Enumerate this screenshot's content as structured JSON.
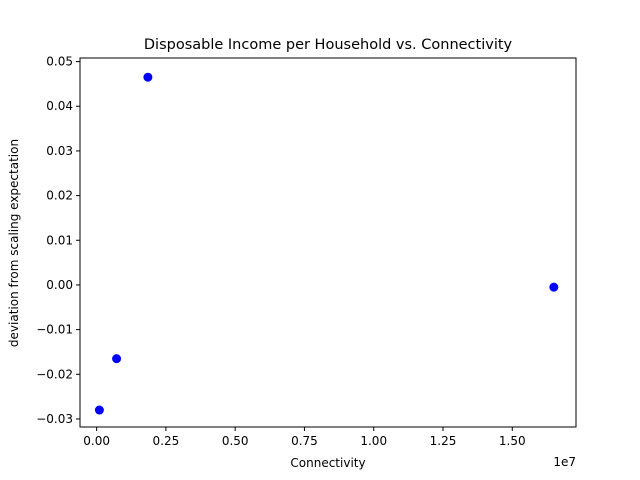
{
  "chart_data": {
    "type": "scatter",
    "title": "Disposable Income per Household vs. Connectivity",
    "xlabel": "Connectivity",
    "ylabel": "deviation from scaling expectation",
    "x_offset_text": "1e7",
    "xlim": [
      -600000,
      17300000
    ],
    "ylim": [
      -0.0318,
      0.0508
    ],
    "x_ticks": [
      0,
      2500000,
      5000000,
      7500000,
      10000000,
      12500000,
      15000000
    ],
    "x_tick_labels": [
      "0.00",
      "0.25",
      "0.50",
      "0.75",
      "1.00",
      "1.25",
      "1.50"
    ],
    "y_ticks": [
      -0.03,
      -0.02,
      -0.01,
      0.0,
      0.01,
      0.02,
      0.03,
      0.04,
      0.05
    ],
    "y_tick_labels": [
      "−0.03",
      "−0.02",
      "−0.01",
      "0.00",
      "0.01",
      "0.02",
      "0.03",
      "0.04",
      "0.05"
    ],
    "marker_color": "#0000ff",
    "grid": false,
    "points": [
      {
        "x": 100000,
        "y": -0.028
      },
      {
        "x": 720000,
        "y": -0.0165
      },
      {
        "x": 1850000,
        "y": 0.0465
      },
      {
        "x": 16500000,
        "y": -0.0005
      }
    ]
  }
}
